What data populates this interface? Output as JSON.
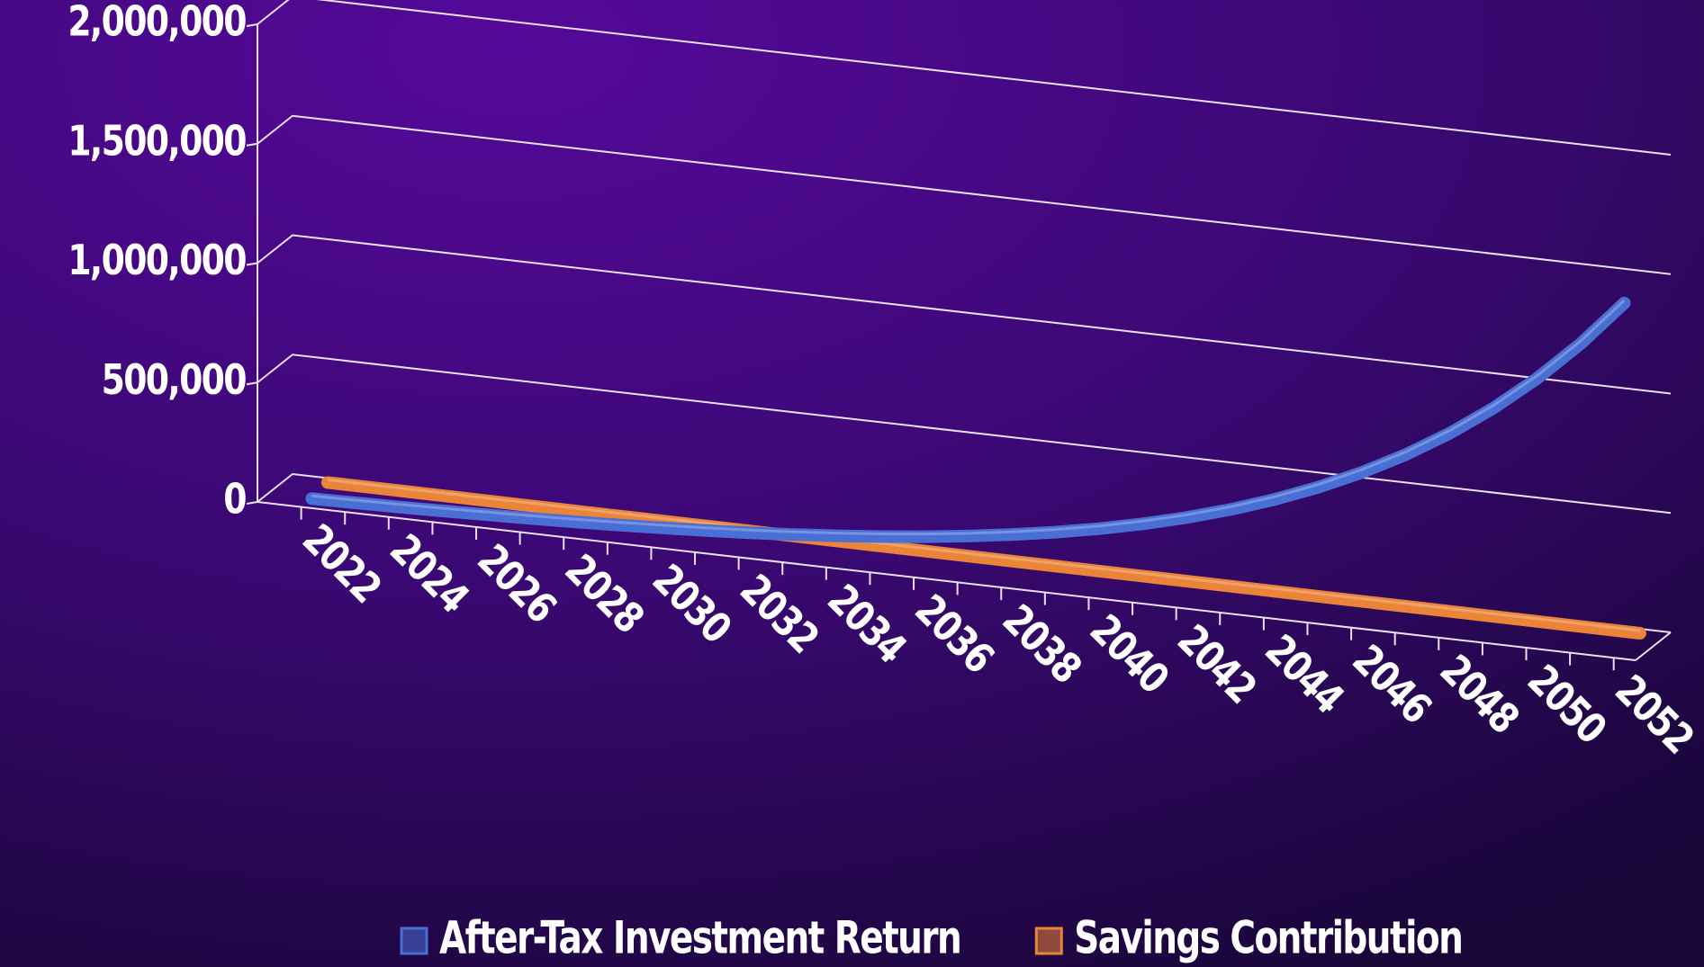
{
  "chart_data": {
    "type": "line3d",
    "categories": [
      "2022",
      null,
      "2024",
      null,
      "2026",
      null,
      "2028",
      null,
      "2030",
      null,
      "2032",
      null,
      "2034",
      null,
      "2036",
      null,
      "2038",
      null,
      "2040",
      null,
      "2042",
      null,
      "2044",
      null,
      "2046",
      null,
      "2048",
      null,
      "2050",
      null,
      "2052"
    ],
    "series": [
      {
        "name": "After-Tax Investment Return",
        "color": "#4a6fd4",
        "values": [
          0,
          3300,
          7200,
          11600,
          16700,
          22500,
          29100,
          36900,
          45800,
          55900,
          67800,
          81200,
          96800,
          114600,
          135100,
          158800,
          185900,
          217100,
          253100,
          294300,
          341800,
          396300,
          459000,
          531300,
          614500,
          709800,
          819700,
          946000,
          1091400,
          1258500,
          1450000
        ]
      },
      {
        "name": "Savings Contribution",
        "color": "#ea8438",
        "values": [
          15000,
          15000,
          15000,
          15000,
          15000,
          15000,
          15000,
          15000,
          15000,
          15000,
          15000,
          15000,
          15000,
          15000,
          15000,
          15000,
          15000,
          15000,
          15000,
          15000,
          15000,
          15000,
          15000,
          15000,
          15000,
          15000,
          15000,
          15000,
          15000,
          15000,
          15000
        ]
      }
    ],
    "ylim": [
      0,
      2000000
    ],
    "yticks": [
      0,
      {
        "value": 500000,
        "label": "500,000"
      },
      {
        "value": 1000000,
        "label": "1,000,000"
      },
      {
        "value": 1500000,
        "label": "1,500,000"
      },
      {
        "value": 2000000,
        "label": "2,000,000"
      }
    ],
    "grid": true,
    "legend": "bottom"
  }
}
